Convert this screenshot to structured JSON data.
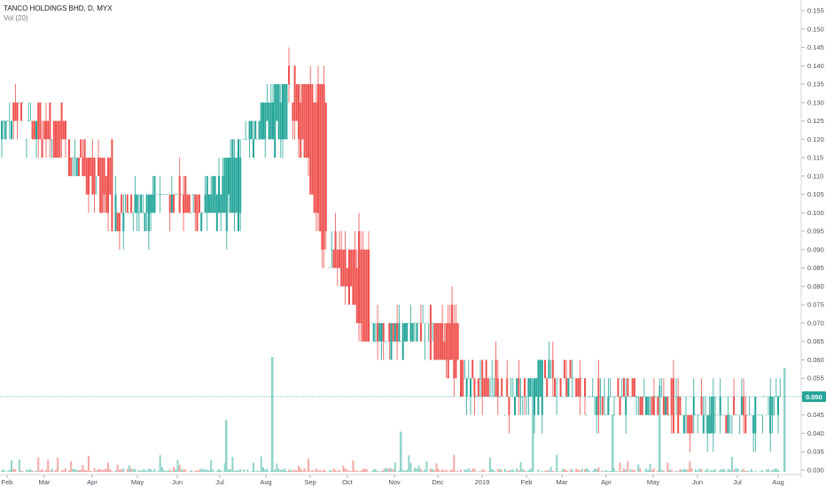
{
  "header": {
    "symbol_line": "TANCO HOLDINGS BHD, D, MYX",
    "indicator_line": "Vol (20)"
  },
  "colors": {
    "up": "#26a69a",
    "down": "#ef5350",
    "up_volume": "#8fd3c8",
    "down_volume": "#f4a9a6",
    "price_line": "#26a69a",
    "axis_text": "#4a4e59"
  },
  "chart_data": {
    "type": "candlestick",
    "title": "TANCO HOLDINGS BHD, D, MYX",
    "indicator": "Vol (20)",
    "y_axis": {
      "min": 0.03,
      "max": 0.155,
      "ticks": [
        "0.155",
        "0.150",
        "0.145",
        "0.140",
        "0.135",
        "0.130",
        "0.125",
        "0.120",
        "0.115",
        "0.110",
        "0.105",
        "0.100",
        "0.095",
        "0.090",
        "0.085",
        "0.080",
        "0.075",
        "0.070",
        "0.065",
        "0.060",
        "0.055",
        "0.050",
        "0.045",
        "0.040",
        "0.035",
        "0.030"
      ]
    },
    "x_axis": {
      "ticks": [
        "Feb",
        "Mar",
        "Apr",
        "May",
        "Jun",
        "Jul",
        "Aug",
        "Sep",
        "Oct",
        "Nov",
        "Dec",
        "2019",
        "Feb",
        "Mar",
        "Apr",
        "May",
        "Jun",
        "Jul",
        "Aug"
      ]
    },
    "last_price_label": "0.050",
    "last_price": 0.05,
    "grid": false,
    "approx_close_path": [
      {
        "date": "2018-02",
        "close": 0.125
      },
      {
        "date": "2018-03",
        "close": 0.115
      },
      {
        "date": "2018-04",
        "close": 0.1
      },
      {
        "date": "2018-05",
        "close": 0.105
      },
      {
        "date": "2018-06",
        "close": 0.1
      },
      {
        "date": "2018-07",
        "close": 0.12
      },
      {
        "date": "2018-08",
        "close": 0.135
      },
      {
        "date": "2018-09",
        "close": 0.09
      },
      {
        "date": "2018-10",
        "close": 0.065
      },
      {
        "date": "2018-11",
        "close": 0.07
      },
      {
        "date": "2018-12",
        "close": 0.055
      },
      {
        "date": "2019-01",
        "close": 0.05
      },
      {
        "date": "2019-02",
        "close": 0.055
      },
      {
        "date": "2019-03",
        "close": 0.05
      },
      {
        "date": "2019-04",
        "close": 0.05
      },
      {
        "date": "2019-05",
        "close": 0.045
      },
      {
        "date": "2019-06",
        "close": 0.045
      },
      {
        "date": "2019-07",
        "close": 0.045
      },
      {
        "date": "2019-08",
        "close": 0.05
      }
    ],
    "volume_spikes": [
      {
        "near": "2018-07",
        "relative": 0.45
      },
      {
        "near": "2018-08",
        "relative": 1.0
      },
      {
        "near": "2018-11",
        "relative": 0.35
      },
      {
        "near": "2019-02",
        "relative": 0.8
      },
      {
        "near": "2019-04",
        "relative": 0.5
      },
      {
        "near": "2019-05",
        "relative": 0.75
      },
      {
        "near": "2019-08",
        "relative": 0.9
      }
    ]
  }
}
